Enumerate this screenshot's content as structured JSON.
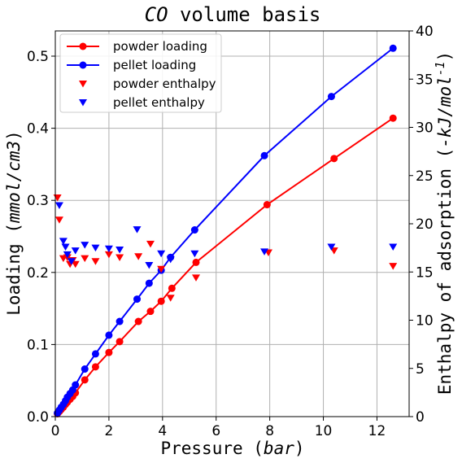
{
  "chart_data": {
    "type": "scatter",
    "title": "$CO$ volume basis",
    "xlabel": "Pressure ($bar$)",
    "ylabel": "Loading ($mmol/cm3$)",
    "y2label": "Enthalpy of adsorption ($-kJ/mol^{-1}$)",
    "xlim": [
      0,
      13.2
    ],
    "ylim": [
      0,
      0.535
    ],
    "y2lim": [
      0,
      40
    ],
    "xticks": [
      "0",
      "2",
      "4",
      "6",
      "8",
      "10",
      "12"
    ],
    "yticks": [
      "0.0",
      "0.1",
      "0.2",
      "0.3",
      "0.4",
      "0.5"
    ],
    "y2ticks": [
      "0",
      "5",
      "10",
      "15",
      "20",
      "25",
      "30",
      "35",
      "40"
    ],
    "grid": true,
    "legend_position": "upper-left",
    "series": [
      {
        "name": "powder loading",
        "axis": "left",
        "style": "line-circle",
        "color": "#ff0000",
        "x": [
          0.08,
          0.15,
          0.22,
          0.3,
          0.38,
          0.45,
          0.55,
          0.65,
          0.75,
          1.1,
          1.5,
          2.0,
          2.4,
          3.1,
          3.55,
          3.95,
          4.35,
          5.25,
          7.9,
          10.4,
          12.6
        ],
        "y": [
          0.004,
          0.007,
          0.01,
          0.013,
          0.017,
          0.02,
          0.024,
          0.028,
          0.033,
          0.051,
          0.069,
          0.089,
          0.104,
          0.132,
          0.146,
          0.16,
          0.178,
          0.214,
          0.294,
          0.358,
          0.414
        ]
      },
      {
        "name": "pellet loading",
        "axis": "left",
        "style": "line-circle",
        "color": "#0000ff",
        "x": [
          0.08,
          0.15,
          0.22,
          0.3,
          0.38,
          0.45,
          0.55,
          0.65,
          0.75,
          1.1,
          1.5,
          2.0,
          2.4,
          3.05,
          3.5,
          3.95,
          4.3,
          5.2,
          7.8,
          10.3,
          12.6
        ],
        "y": [
          0.005,
          0.009,
          0.013,
          0.017,
          0.022,
          0.027,
          0.032,
          0.037,
          0.044,
          0.066,
          0.087,
          0.113,
          0.132,
          0.163,
          0.185,
          0.203,
          0.221,
          0.259,
          0.362,
          0.444,
          0.511
        ]
      },
      {
        "name": "powder enthalpy",
        "axis": "right",
        "style": "triangle-down",
        "color": "#ff0000",
        "x": [
          0.08,
          0.15,
          0.3,
          0.45,
          0.55,
          0.65,
          0.75,
          1.1,
          1.5,
          2.0,
          2.4,
          3.1,
          3.55,
          3.95,
          4.3,
          5.25,
          7.95,
          10.4,
          12.6
        ],
        "y": [
          22.7,
          20.4,
          16.4,
          16.5,
          15.8,
          16.2,
          15.8,
          16.4,
          16.1,
          16.8,
          16.5,
          16.6,
          17.9,
          15.3,
          12.3,
          14.4,
          17.0,
          17.2,
          15.6
        ]
      },
      {
        "name": "pellet enthalpy",
        "axis": "right",
        "style": "triangle-down",
        "color": "#0000ff",
        "x": [
          0.15,
          0.3,
          0.38,
          0.45,
          0.6,
          0.75,
          1.1,
          1.5,
          2.0,
          2.4,
          3.05,
          3.5,
          3.95,
          4.3,
          5.2,
          7.8,
          10.3,
          12.6
        ],
        "y": [
          21.9,
          18.2,
          17.6,
          16.8,
          16.1,
          17.2,
          17.8,
          17.5,
          17.4,
          17.3,
          19.4,
          15.7,
          16.9,
          16.3,
          16.9,
          17.1,
          17.6,
          17.6
        ]
      }
    ]
  }
}
